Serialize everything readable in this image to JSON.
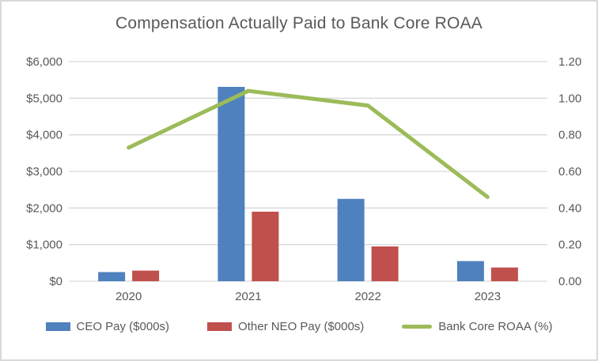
{
  "chart_data": {
    "type": "bar",
    "subtype": "combo-bar-line",
    "title": "Compensation Actually Paid to Bank Core ROAA",
    "categories": [
      "2020",
      "2021",
      "2022",
      "2023"
    ],
    "series": [
      {
        "name": "CEO Pay ($000s)",
        "type": "bar",
        "axis": "left",
        "color": "#4e81bd",
        "values": [
          250,
          5310,
          2250,
          550
        ]
      },
      {
        "name": "Other NEO Pay ($000s)",
        "type": "bar",
        "axis": "left",
        "color": "#c0504d",
        "values": [
          290,
          1900,
          950,
          375
        ]
      },
      {
        "name": "Bank Core ROAA (%)",
        "type": "line",
        "axis": "right",
        "color": "#9cbb59",
        "values": [
          0.73,
          1.04,
          0.96,
          0.46
        ]
      }
    ],
    "left_axis": {
      "min": 0,
      "max": 6000,
      "step": 1000,
      "tick_labels": [
        "$0",
        "$1,000",
        "$2,000",
        "$3,000",
        "$4,000",
        "$5,000",
        "$6,000"
      ]
    },
    "right_axis": {
      "min": 0,
      "max": 1.2,
      "step": 0.2,
      "tick_labels": [
        "0.00",
        "0.20",
        "0.40",
        "0.60",
        "0.80",
        "1.00",
        "1.20"
      ]
    },
    "grid": true,
    "legend_position": "bottom",
    "colors": {
      "text": "#595959",
      "gridline": "#d9d9d9",
      "background": "#ffffff",
      "border": "#d9d9d9"
    }
  },
  "legend": {
    "items": [
      {
        "label": "CEO Pay ($000s)"
      },
      {
        "label": "Other NEO Pay ($000s)"
      },
      {
        "label": "Bank Core ROAA (%)"
      }
    ]
  }
}
